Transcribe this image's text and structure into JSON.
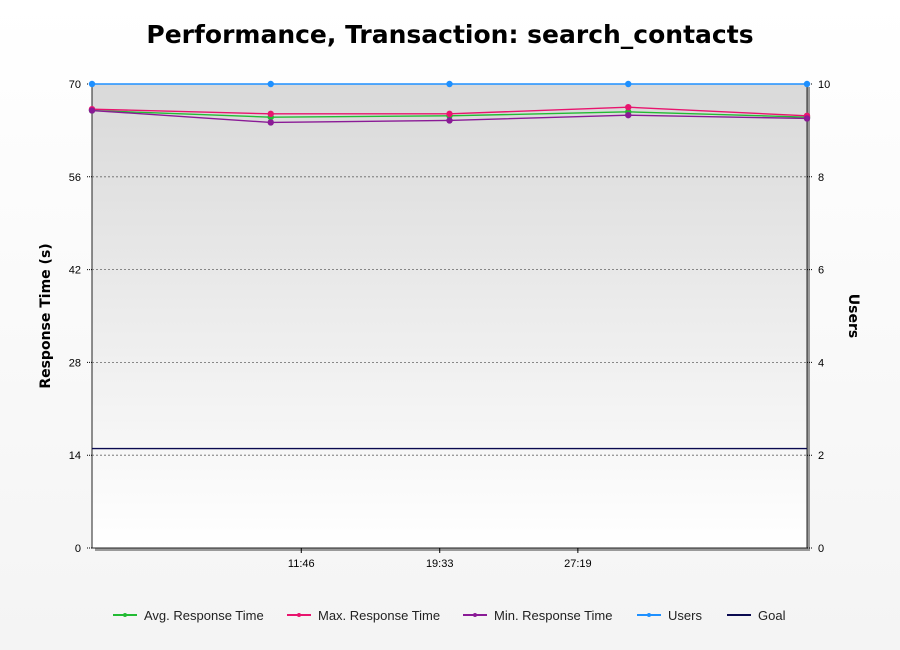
{
  "chart_data": {
    "type": "line",
    "title": "Performance, Transaction: search_contacts",
    "ylabel": "Response Time (s)",
    "y2label": "Users",
    "xlabel": "",
    "ylim": [
      0,
      70
    ],
    "y2lim": [
      0,
      10
    ],
    "yticks": [
      0,
      14,
      28,
      42,
      56,
      70
    ],
    "y2ticks": [
      0,
      2,
      4,
      6,
      8,
      10
    ],
    "xlim_minutes": [
      0,
      40.2
    ],
    "xticks": [
      "11:46",
      "19:33",
      "27:19"
    ],
    "x": [
      "0:00",
      "10:03",
      "20:06",
      "30:09",
      "40:12"
    ],
    "grid": true,
    "legend_position": "bottom",
    "series": [
      {
        "name": "Avg. Response Time",
        "axis": "left",
        "color": "#22bb33",
        "values": [
          66.0,
          65.0,
          65.2,
          65.8,
          65.0
        ]
      },
      {
        "name": "Max. Response Time",
        "axis": "left",
        "color": "#e8146e",
        "values": [
          66.2,
          65.5,
          65.5,
          66.5,
          65.2
        ]
      },
      {
        "name": "Min. Response Time",
        "axis": "left",
        "color": "#8a1a96",
        "values": [
          66.0,
          64.2,
          64.5,
          65.3,
          64.8
        ]
      },
      {
        "name": "Users",
        "axis": "right",
        "color": "#1e90ff",
        "values": [
          10,
          10,
          10,
          10,
          10
        ]
      }
    ],
    "goal": {
      "name": "Goal",
      "value": 15,
      "color": "#0a0a50"
    }
  }
}
